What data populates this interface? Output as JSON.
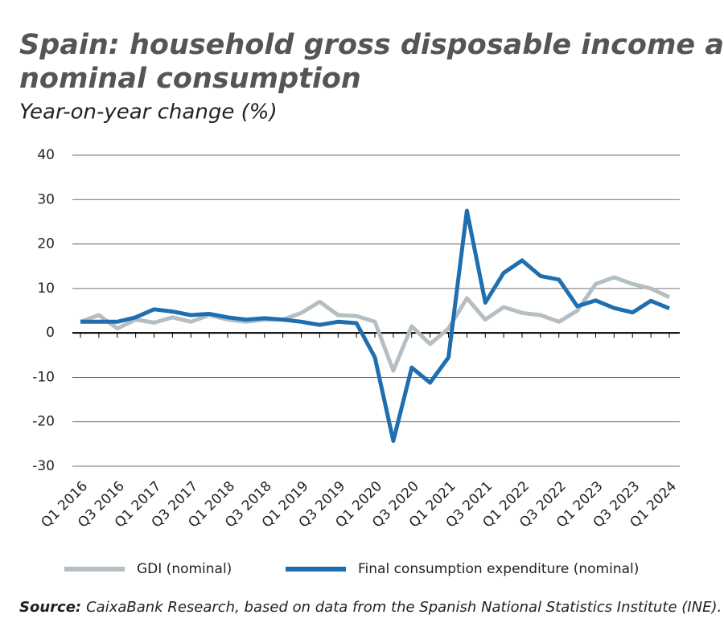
{
  "chart_data": {
    "type": "line",
    "title": "Spain: household gross disposable income and nominal consumption",
    "subtitle": "Year-on-year change (%)",
    "categories": [
      "Q1 2016",
      null,
      "Q3 2016",
      null,
      "Q1 2017",
      null,
      "Q3 2017",
      null,
      "Q1 2018",
      null,
      "Q3 2018",
      null,
      "Q1 2019",
      null,
      "Q3 2019",
      null,
      "Q1 2020",
      null,
      "Q3 2020",
      null,
      "Q1 2021",
      null,
      "Q3 2021",
      null,
      "Q1 2022",
      null,
      "Q3 2022",
      null,
      "Q1 2023",
      null,
      "Q3 2023",
      null,
      "Q1 2024"
    ],
    "series": [
      {
        "name": "GDI (nominal)",
        "color": "#b4bec3",
        "values": [
          2.5,
          4,
          1,
          3,
          2.3,
          3.5,
          2.5,
          4,
          3,
          2.5,
          3,
          3,
          4.5,
          7,
          4,
          3.8,
          2.5,
          -8.5,
          1.5,
          -2.5,
          1,
          7.8,
          3,
          5.8,
          4.5,
          4,
          2.5,
          5,
          11,
          12.5,
          11,
          10,
          8
        ]
      },
      {
        "name": "Final consumption expenditure (nominal)",
        "color": "#1f6fb0",
        "values": [
          2.5,
          2.5,
          2.5,
          3.5,
          5.3,
          4.8,
          4,
          4.3,
          3.5,
          3,
          3.3,
          3,
          2.5,
          1.8,
          2.5,
          2.2,
          -5.5,
          -24.3,
          -7.8,
          -11.2,
          -5.5,
          27.5,
          6.8,
          13.5,
          16.3,
          12.8,
          12,
          6,
          7.3,
          5.6,
          4.6,
          7.2,
          5.5
        ]
      }
    ],
    "ylim": [
      -30,
      40
    ],
    "yticks": [
      -30,
      -20,
      -10,
      0,
      10,
      20,
      30,
      40
    ],
    "grid": true,
    "source_label": "Source:",
    "source_text": "CaixaBank Research, based on data from the Spanish National Statistics Institute (INE)."
  }
}
